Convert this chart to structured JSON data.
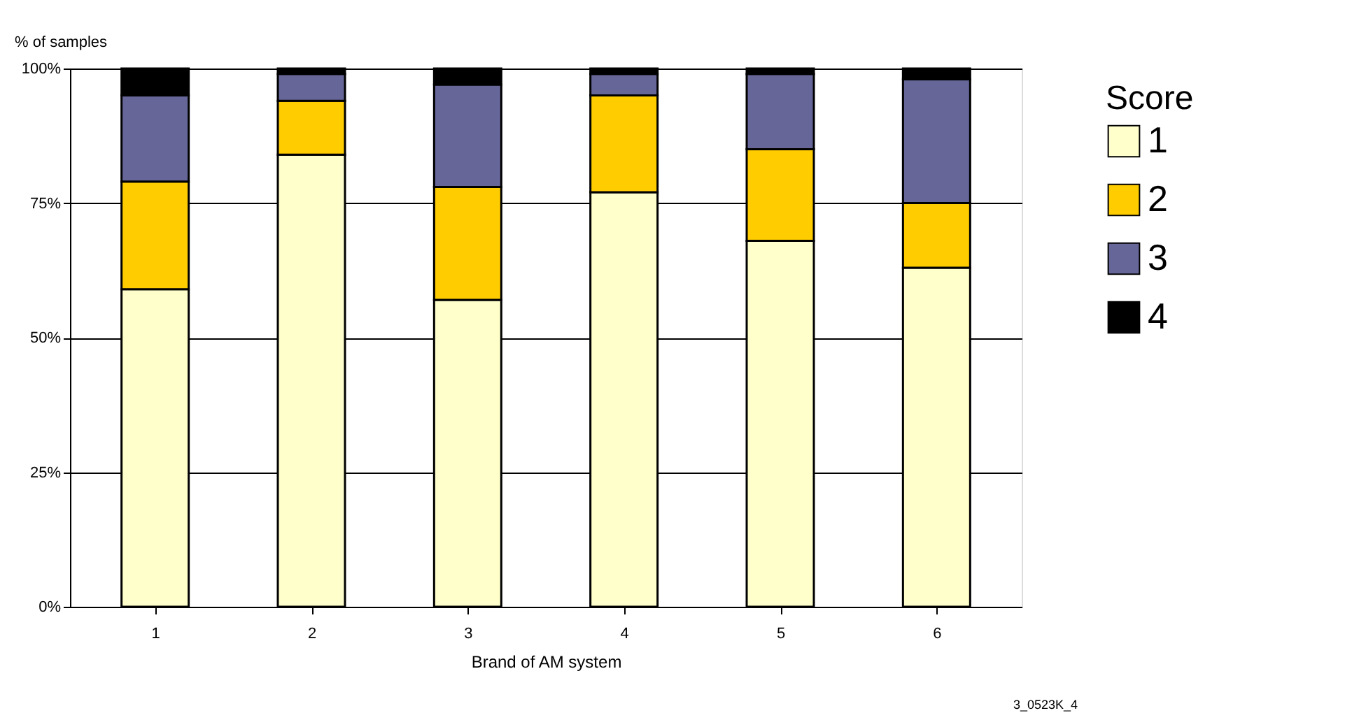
{
  "chart_data": {
    "type": "bar",
    "stacked": true,
    "xlabel": "Brand of AM system",
    "ylabel": "% of samples",
    "legend_title": "Score",
    "legend": "right",
    "grid": "y",
    "categories": [
      "1",
      "2",
      "3",
      "4",
      "5",
      "6"
    ],
    "series": [
      {
        "name": "1",
        "color": "#ffffcc",
        "values": [
          59,
          84,
          57,
          77,
          68,
          63
        ]
      },
      {
        "name": "2",
        "color": "#ffcc00",
        "values": [
          20,
          10,
          21,
          18,
          17,
          12
        ]
      },
      {
        "name": "3",
        "color": "#666699",
        "values": [
          16,
          5,
          19,
          4,
          14,
          23
        ]
      },
      {
        "name": "4",
        "color": "#000000",
        "values": [
          5,
          1,
          3,
          1,
          1,
          2
        ]
      }
    ],
    "ylim": [
      0,
      100
    ],
    "yticks": [
      {
        "value": 0,
        "label": "0%"
      },
      {
        "value": 25,
        "label": "25%"
      },
      {
        "value": 50,
        "label": "50%"
      },
      {
        "value": 75,
        "label": "75%"
      },
      {
        "value": 100,
        "label": "100%"
      }
    ],
    "annotations": [
      "3_0523K_4"
    ]
  }
}
